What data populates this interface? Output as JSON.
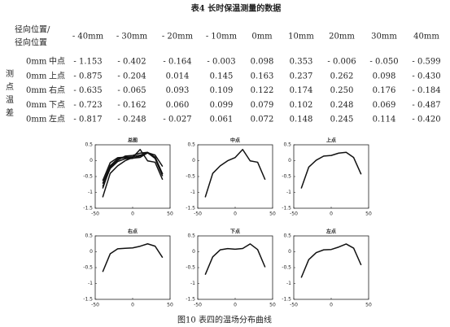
{
  "table": {
    "title": "表4   长时保温测量的数据",
    "corner": [
      "径向位置/",
      "径向位置"
    ],
    "side_label": "测点温差",
    "columns": [
      "- 40mm",
      "- 30mm",
      "- 20mm",
      "- 10mm",
      "0mm",
      "10mm",
      "20mm",
      "30mm",
      "40mm"
    ],
    "rows": [
      {
        "pos": "0mm",
        "name": "中点",
        "values": [
          "- 1.153",
          "- 0.402",
          "- 0.164",
          "- 0.003",
          "0.098",
          "0.353",
          "- 0.006",
          "- 0.050",
          "- 0.599"
        ]
      },
      {
        "pos": "0mm",
        "name": "上点",
        "values": [
          "- 0.875",
          "- 0.204",
          "0.014",
          "0.145",
          "0.163",
          "0.237",
          "0.262",
          "0.098",
          "- 0.430"
        ]
      },
      {
        "pos": "0mm",
        "name": "右点",
        "values": [
          "- 0.635",
          "- 0.065",
          "0.093",
          "0.109",
          "0.122",
          "0.174",
          "0.250",
          "0.176",
          "- 0.184"
        ]
      },
      {
        "pos": "0mm",
        "name": "下点",
        "values": [
          "- 0.723",
          "- 0.162",
          "0.060",
          "0.099",
          "0.079",
          "0.102",
          "0.248",
          "0.069",
          "- 0.487"
        ]
      },
      {
        "pos": "0mm",
        "name": "左点",
        "values": [
          "- 0.817",
          "- 0.248",
          "- 0.027",
          "0.061",
          "0.072",
          "0.148",
          "0.245",
          "0.114",
          "- 0.420"
        ]
      }
    ]
  },
  "chart_data": [
    {
      "type": "line",
      "title": "总图",
      "x": [
        -40,
        -30,
        -20,
        -10,
        0,
        10,
        20,
        30,
        40
      ],
      "series": [
        {
          "color": "#111",
          "values": [
            -1.153,
            -0.402,
            -0.164,
            -0.003,
            0.098,
            0.353,
            -0.006,
            -0.05,
            -0.599
          ]
        },
        {
          "color": "#111",
          "values": [
            -0.875,
            -0.204,
            0.014,
            0.145,
            0.163,
            0.237,
            0.262,
            0.098,
            -0.43
          ]
        },
        {
          "color": "#111",
          "values": [
            -0.635,
            -0.065,
            0.093,
            0.109,
            0.122,
            0.174,
            0.25,
            0.176,
            -0.184
          ]
        },
        {
          "color": "#111",
          "values": [
            -0.723,
            -0.162,
            0.06,
            0.099,
            0.079,
            0.102,
            0.248,
            0.069,
            -0.487
          ]
        },
        {
          "color": "#111",
          "values": [
            -0.817,
            -0.248,
            -0.027,
            0.061,
            0.072,
            0.148,
            0.245,
            0.114,
            -0.42
          ]
        }
      ],
      "xlim": [
        -50,
        50
      ],
      "xticks": [
        -50,
        0,
        50
      ],
      "ylim": [
        -1.5,
        0.5
      ],
      "yticks": [
        0.5,
        0,
        -0.5,
        -1,
        -1.5
      ]
    },
    {
      "type": "line",
      "title": "中点",
      "x": [
        -40,
        -30,
        -20,
        -10,
        0,
        10,
        20,
        30,
        40
      ],
      "series": [
        {
          "color": "#111",
          "values": [
            -1.153,
            -0.402,
            -0.164,
            -0.003,
            0.098,
            0.353,
            -0.006,
            -0.05,
            -0.599
          ]
        }
      ],
      "xlim": [
        -50,
        50
      ],
      "xticks": [
        -50,
        0,
        50
      ],
      "ylim": [
        -1.5,
        0.5
      ],
      "yticks": [
        0.5,
        0,
        -0.5,
        -1,
        -1.5
      ]
    },
    {
      "type": "line",
      "title": "上点",
      "x": [
        -40,
        -30,
        -20,
        -10,
        0,
        10,
        20,
        30,
        40
      ],
      "series": [
        {
          "color": "#111",
          "values": [
            -0.875,
            -0.204,
            0.014,
            0.145,
            0.163,
            0.237,
            0.262,
            0.098,
            -0.43
          ]
        }
      ],
      "xlim": [
        -50,
        50
      ],
      "xticks": [
        -50,
        0,
        50
      ],
      "ylim": [
        -1.5,
        0.5
      ],
      "yticks": [
        0.5,
        0,
        -0.5,
        -1,
        -1.5
      ]
    },
    {
      "type": "line",
      "title": "右点",
      "x": [
        -40,
        -30,
        -20,
        -10,
        0,
        10,
        20,
        30,
        40
      ],
      "series": [
        {
          "color": "#111",
          "values": [
            -0.635,
            -0.065,
            0.093,
            0.109,
            0.122,
            0.174,
            0.25,
            0.176,
            -0.184
          ]
        }
      ],
      "xlim": [
        -50,
        50
      ],
      "xticks": [
        -50,
        0,
        50
      ],
      "ylim": [
        -1.5,
        0.5
      ],
      "yticks": [
        0.5,
        0,
        -0.5,
        -1,
        -1.5
      ]
    },
    {
      "type": "line",
      "title": "下点",
      "x": [
        -40,
        -30,
        -20,
        -10,
        0,
        10,
        20,
        30,
        40
      ],
      "series": [
        {
          "color": "#111",
          "values": [
            -0.723,
            -0.162,
            0.06,
            0.099,
            0.079,
            0.102,
            0.248,
            0.069,
            -0.487
          ]
        }
      ],
      "xlim": [
        -50,
        50
      ],
      "xticks": [
        -50,
        0,
        50
      ],
      "ylim": [
        -1.5,
        0.5
      ],
      "yticks": [
        0.5,
        0,
        -0.5,
        -1,
        -1.5
      ]
    },
    {
      "type": "line",
      "title": "左点",
      "x": [
        -40,
        -30,
        -20,
        -10,
        0,
        10,
        20,
        30,
        40
      ],
      "series": [
        {
          "color": "#111",
          "values": [
            -0.817,
            -0.248,
            -0.027,
            0.061,
            0.072,
            0.148,
            0.245,
            0.114,
            -0.42
          ]
        }
      ],
      "xlim": [
        -50,
        50
      ],
      "xticks": [
        -50,
        0,
        50
      ],
      "ylim": [
        -1.5,
        0.5
      ],
      "yticks": [
        0.5,
        0,
        -0.5,
        -1,
        -1.5
      ]
    }
  ],
  "caption": "图10   表四的温场分布曲线"
}
